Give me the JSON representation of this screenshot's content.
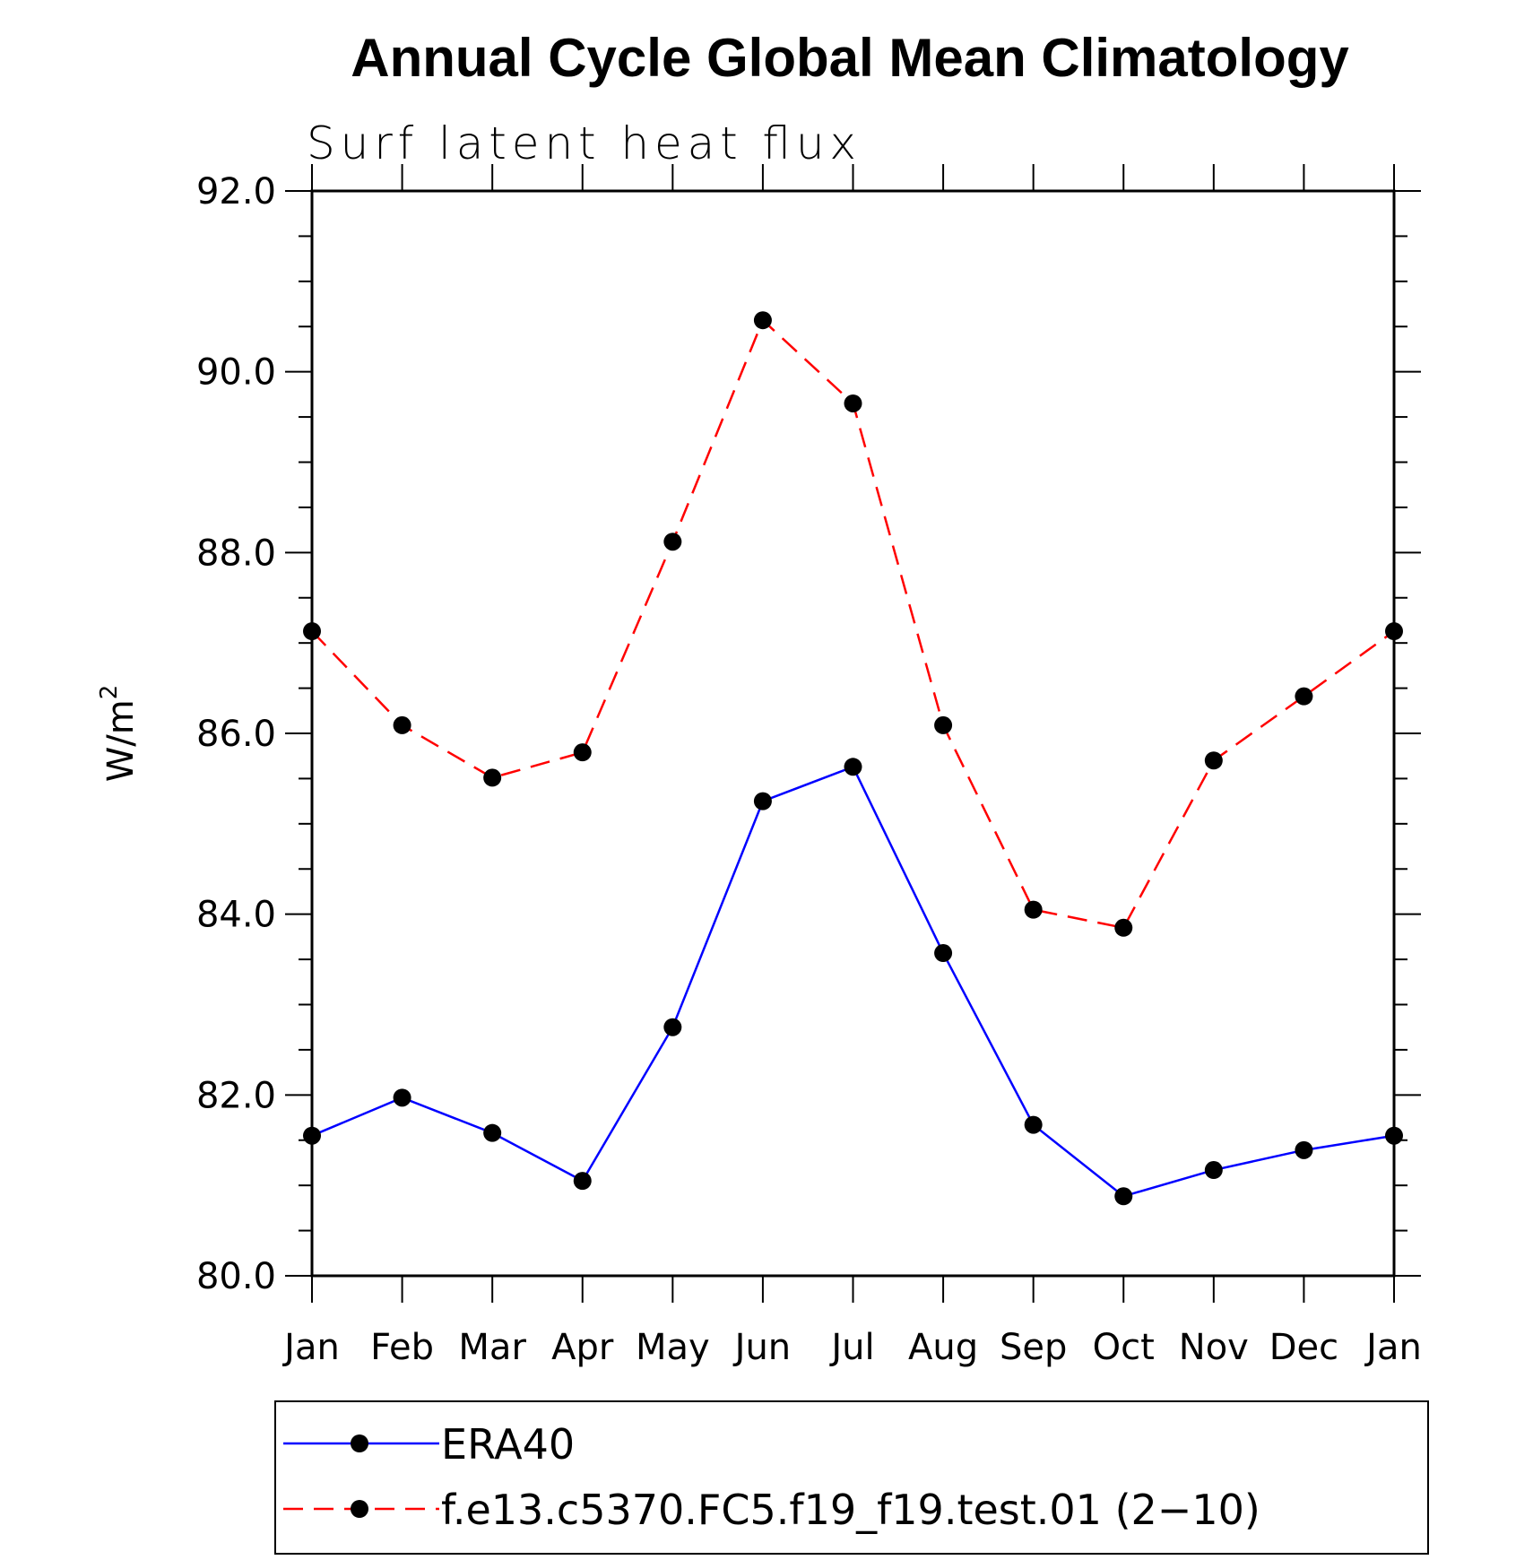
{
  "chart_data": {
    "type": "line",
    "title": "Annual Cycle Global Mean Climatology",
    "subtitle": "Surf latent heat flux",
    "ylabel": "W/m",
    "ylabel_superscript": "2",
    "xlabel": "",
    "ylim": [
      80.0,
      92.0
    ],
    "yticks": [
      "80.0",
      "82.0",
      "84.0",
      "86.0",
      "88.0",
      "90.0",
      "92.0"
    ],
    "categories": [
      "Jan",
      "Feb",
      "Mar",
      "Apr",
      "May",
      "Jun",
      "Jul",
      "Aug",
      "Sep",
      "Oct",
      "Nov",
      "Dec",
      "Jan"
    ],
    "grid": false,
    "legend_position": "bottom",
    "series": [
      {
        "name": "ERA40",
        "color": "#0000ff",
        "dash": "solid",
        "values": [
          81.55,
          81.97,
          81.58,
          81.05,
          82.75,
          85.25,
          85.63,
          83.57,
          81.67,
          80.88,
          81.17,
          81.39,
          81.55
        ]
      },
      {
        "name": "f.e13.c5370.FC5.f19_f19.test.01 (2−10)",
        "color": "#ff0000",
        "dash": "dashed",
        "values": [
          87.13,
          86.09,
          85.51,
          85.79,
          88.12,
          90.57,
          89.65,
          86.09,
          84.05,
          83.85,
          85.7,
          86.41,
          87.13
        ]
      }
    ]
  }
}
